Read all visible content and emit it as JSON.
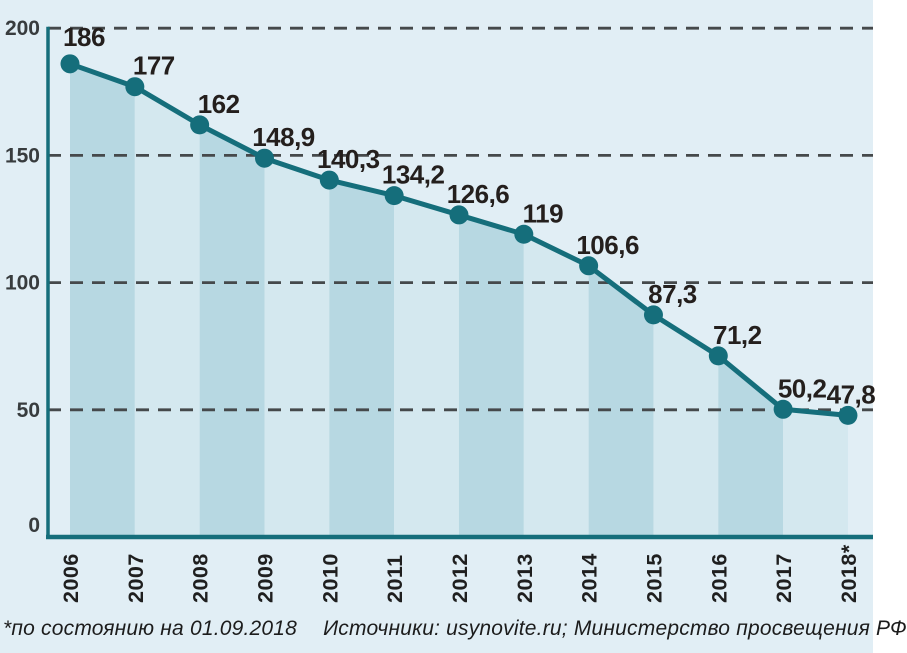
{
  "page": {
    "footer": {
      "note": "*по состоянию на 01.09.2018",
      "sources": "Источники: usynovite.ru; Министерство просвещения РФ"
    }
  },
  "chart_data": {
    "type": "area",
    "title": "",
    "x": [
      "2006",
      "2007",
      "2008",
      "2009",
      "2010",
      "2011",
      "2012",
      "2013",
      "2014",
      "2015",
      "2016",
      "2017",
      "2018*"
    ],
    "values": [
      186,
      177,
      162,
      148.9,
      140.3,
      134.2,
      126.6,
      119,
      106.6,
      87.3,
      71.2,
      50.2,
      47.8
    ],
    "value_labels": [
      "186",
      "177",
      "162",
      "148,9",
      "140,3",
      "134,2",
      "126,6",
      "119",
      "106,6",
      "87,3",
      "71,2",
      "50,2",
      "47,8"
    ],
    "ylim": [
      0,
      200
    ],
    "yticks": [
      0,
      50,
      100,
      150,
      200
    ],
    "ytick_labels": [
      "0",
      "50",
      "100",
      "150",
      "200"
    ],
    "grid": "horizontal dashed at each 50",
    "legend": "none",
    "colors": {
      "background": "#e1eef5",
      "band_dark": "#b7d8e2",
      "band_light": "#d4e8ef",
      "line": "#156e7b",
      "marker": "#156e7b",
      "axis": "#156e7b",
      "gridline": "#45494b",
      "value_label": "#241f1d",
      "ytick_label": "#383c3e",
      "xtick_label": "#1f1f1f"
    }
  }
}
